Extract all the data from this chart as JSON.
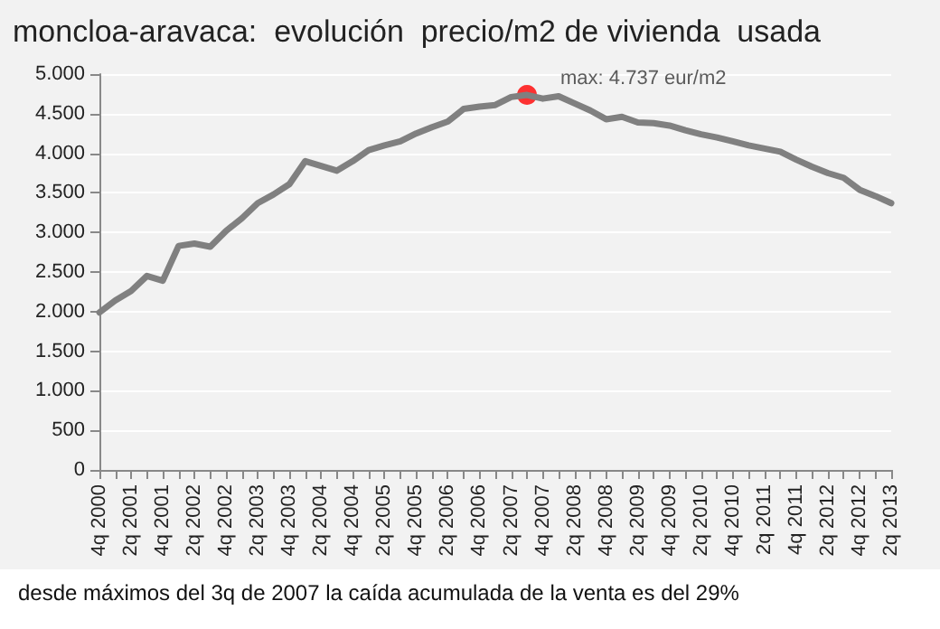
{
  "chart_data": {
    "type": "line",
    "title": "moncloa-aravaca:  evolución  precio/m2 de vivienda  usada",
    "categories": [
      "4q 2000",
      null,
      "2q 2001",
      null,
      "4q 2001",
      null,
      "2q 2002",
      null,
      "4q 2002",
      null,
      "2q 2003",
      null,
      "4q 2003",
      null,
      "2q 2004",
      null,
      "4q 2004",
      null,
      "2q 2005",
      null,
      "4q 2005",
      null,
      "2q 2006",
      null,
      "4q 2006",
      null,
      "2q 2007",
      null,
      "4q 2007",
      null,
      "2q 2008",
      null,
      "4q 2008",
      null,
      "2q 2009",
      null,
      "4q 2009",
      null,
      "2q 2010",
      null,
      "4q 2010",
      null,
      "2q 2011",
      null,
      "4q 2011",
      null,
      "2q 2012",
      null,
      "4q 2012",
      null,
      "2q 2013"
    ],
    "series": [
      {
        "color": "#808080",
        "marker": "none",
        "line_style": "solid",
        "values": [
          1990,
          2140,
          2260,
          2450,
          2390,
          2830,
          2860,
          2820,
          3020,
          3180,
          3370,
          3480,
          3610,
          3900,
          3840,
          3780,
          3900,
          4040,
          4100,
          4150,
          4250,
          4330,
          4400,
          4560,
          4590,
          4610,
          4710,
          4737,
          4690,
          4720,
          4630,
          4540,
          4430,
          4460,
          4390,
          4380,
          4350,
          4290,
          4240,
          4200,
          4150,
          4100,
          4060,
          4020,
          3920,
          3830,
          3750,
          3690,
          3540,
          3460,
          3370
        ]
      },
      {
        "type": "scatter",
        "color": "#ff0000",
        "marker": "circle",
        "values": [
          null,
          null,
          null,
          null,
          null,
          null,
          null,
          null,
          null,
          null,
          null,
          null,
          null,
          null,
          null,
          null,
          null,
          null,
          null,
          null,
          null,
          null,
          null,
          null,
          null,
          null,
          null,
          4737,
          null,
          null,
          null,
          null,
          null,
          null,
          null,
          null,
          null,
          null,
          null,
          null,
          null,
          null,
          null,
          null,
          null,
          null,
          null,
          null,
          null,
          null,
          null
        ]
      }
    ],
    "ylim": [
      0,
      5000
    ],
    "yticks": [
      {
        "value": 0,
        "label": "0"
      },
      {
        "value": 500,
        "label": "500"
      },
      {
        "value": 1000,
        "label": "1.000"
      },
      {
        "value": 1500,
        "label": "1.500"
      },
      {
        "value": 2000,
        "label": "2.000"
      },
      {
        "value": 2500,
        "label": "2.500"
      },
      {
        "value": 3000,
        "label": "3.000"
      },
      {
        "value": 3500,
        "label": "3.500"
      },
      {
        "value": 4000,
        "label": "4.000"
      },
      {
        "value": 4500,
        "label": "4.500"
      },
      {
        "value": 5000,
        "label": "5.000"
      }
    ],
    "grid": "y",
    "annotations": [
      "max: 4.737 eur/m2",
      "desde máximos del 3q de 2007 la caída acumulada de la venta es del 29%"
    ]
  }
}
